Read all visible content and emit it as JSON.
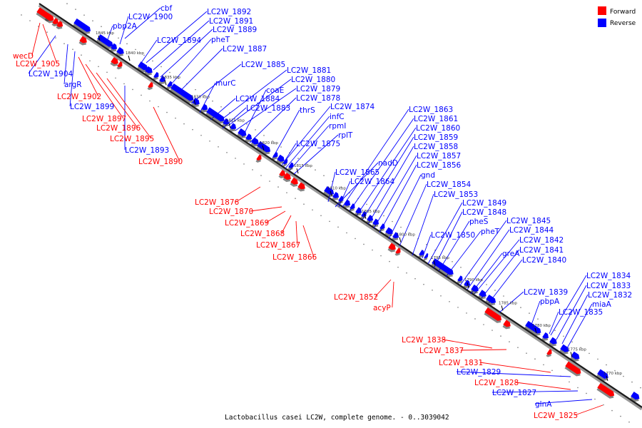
{
  "caption": "Lactobacillus casei LC2W, complete genome. - 0..3039042",
  "legend": [
    {
      "label": "Forward",
      "color": "#ff0000"
    },
    {
      "label": "Reverse",
      "color": "#0000ff"
    }
  ],
  "strand_colors": {
    "forward": "#ff0000",
    "reverse": "#0000ff"
  },
  "ticks": [
    "1845 kbp",
    "1840 kbp",
    "1835 kbp",
    "1830 kbp",
    "1825 kbp",
    "1820 kbp",
    "1815 kbp",
    "1810 kbp",
    "1805 kbp",
    "1800 kbp",
    "1795 kbp",
    "1790 kbp",
    "1785 kbp",
    "1780 kbp",
    "1775 kbp",
    "1770 kbp"
  ],
  "reverse_labels": [
    "pbp2A",
    "cbf",
    "LC2W_1900",
    "LC2W_1892",
    "LC2W_1891",
    "LC2W_1889",
    "LC2W_1894",
    "pheT",
    "LC2W_1887",
    "LC2W_1885",
    "LC2W_1881",
    "LC2W_1880",
    "LC2W_1879",
    "coaE",
    "murC",
    "LC2W_1878",
    "LC2W_1884",
    "LC2W_1883",
    "thrS",
    "LC2W_1874",
    "infC",
    "rpmI",
    "rplT",
    "LC2W_1875",
    "LC2W_1863",
    "LC2W_1861",
    "LC2W_1860",
    "LC2W_1859",
    "LC2W_1858",
    "LC2W_1857",
    "nadD",
    "LC2W_1856",
    "LC2W_1865",
    "LC2W_1864",
    "gnd",
    "LC2W_1854",
    "LC2W_1853",
    "LC2W_1849",
    "LC2W_1848",
    "pheS",
    "pheT",
    "LC2W_1850",
    "LC2W_1845",
    "LC2W_1844",
    "LC2W_1842",
    "LC2W_1841",
    "greA",
    "LC2W_1840",
    "LC2W_1834",
    "LC2W_1833",
    "LC2W_1832",
    "miaA",
    "LC2W_1839",
    "pbpA",
    "LC2W_1835",
    "LC2W_1904",
    "argR",
    "LC2W_1899",
    "LC2W_1893",
    "LC2W_1829",
    "LC2W_1827",
    "glnA"
  ],
  "forward_labels": [
    "wecD",
    "LC2W_1905",
    "LC2W_1902",
    "LC2W_1897",
    "LC2W_1896",
    "LC2W_1895",
    "LC2W_1890",
    "LC2W_1876",
    "LC2W_1870",
    "LC2W_1869",
    "LC2W_1868",
    "LC2W_1867",
    "LC2W_1866",
    "LC2W_1852",
    "acyP",
    "LC2W_1838",
    "LC2W_1837",
    "LC2W_1831",
    "LC2W_1828",
    "LC2W_1825"
  ]
}
